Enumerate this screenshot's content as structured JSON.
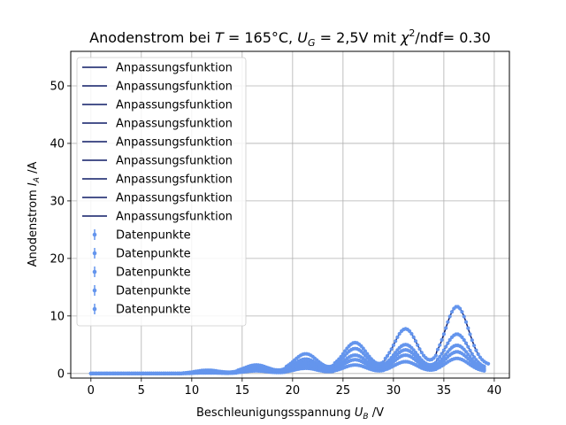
{
  "chart_data": {
    "type": "line",
    "title": "Anodenstrom bei T = 165°C, U_G = 2,5V mit χ²/ndf= 0.30",
    "title_parts": {
      "prefix": "Anodenstrom bei ",
      "T_sym": "T",
      "T_val": " = 165°C, ",
      "U_sym": "U",
      "U_sub": "G",
      "U_val": " = 2,5V mit ",
      "chi": "χ",
      "chi_sup": "2",
      "suffix": "/ndf= 0.30"
    },
    "xlabel": "Beschleunigungsspannung U_B /V",
    "xlabel_parts": {
      "prefix": "Beschleunigungsspannung ",
      "sym": "U",
      "sub": "B",
      "suffix": " /V"
    },
    "ylabel": "Anodenstrom I_A /A",
    "ylabel_parts": {
      "prefix": "Anodenstrom ",
      "sym": "I",
      "sub": "A",
      "suffix": " /A"
    },
    "xlim": [
      -2,
      41.5
    ],
    "ylim": [
      -0.8,
      56
    ],
    "xticks": [
      0,
      5,
      10,
      15,
      20,
      25,
      30,
      35,
      40
    ],
    "yticks": [
      0,
      10,
      20,
      30,
      40,
      50
    ],
    "grid": true,
    "legend_position": "upper-left",
    "legend": {
      "fit_label": "Anpassungsfunktion",
      "data_label": "Datenpunkte",
      "fit_count": 9,
      "data_count": 5
    },
    "colors": {
      "fit": "#0f1b66",
      "data": "#6495ed",
      "grid": "#b0b0b0"
    },
    "curve_model": {
      "peaks": [
        11.5,
        16.4,
        21.3,
        26.2,
        31.2,
        36.3
      ],
      "width": 1.15,
      "background_ratio": 0.14,
      "onset": 9.0,
      "x_end": 39.0,
      "x_end_long": 39.5
    },
    "series": [
      {
        "name": "Datenpunkte",
        "peak_heights": [
          0.5,
          1.3,
          3.0,
          4.7,
          6.8,
          10.2
        ],
        "long": true
      },
      {
        "name": "Datenpunkte",
        "peak_heights": [
          0.4,
          1.0,
          2.2,
          3.8,
          4.4,
          6.0
        ],
        "long": false
      },
      {
        "name": "Datenpunkte",
        "peak_heights": [
          0.3,
          0.8,
          1.7,
          2.8,
          3.6,
          4.3
        ],
        "long": false
      },
      {
        "name": "Datenpunkte",
        "peak_heights": [
          0.2,
          0.6,
          1.3,
          2.1,
          2.8,
          3.3
        ],
        "long": false
      },
      {
        "name": "Datenpunkte",
        "peak_heights": [
          0.1,
          0.4,
          0.8,
          1.3,
          1.8,
          2.3
        ],
        "long": false
      }
    ]
  }
}
